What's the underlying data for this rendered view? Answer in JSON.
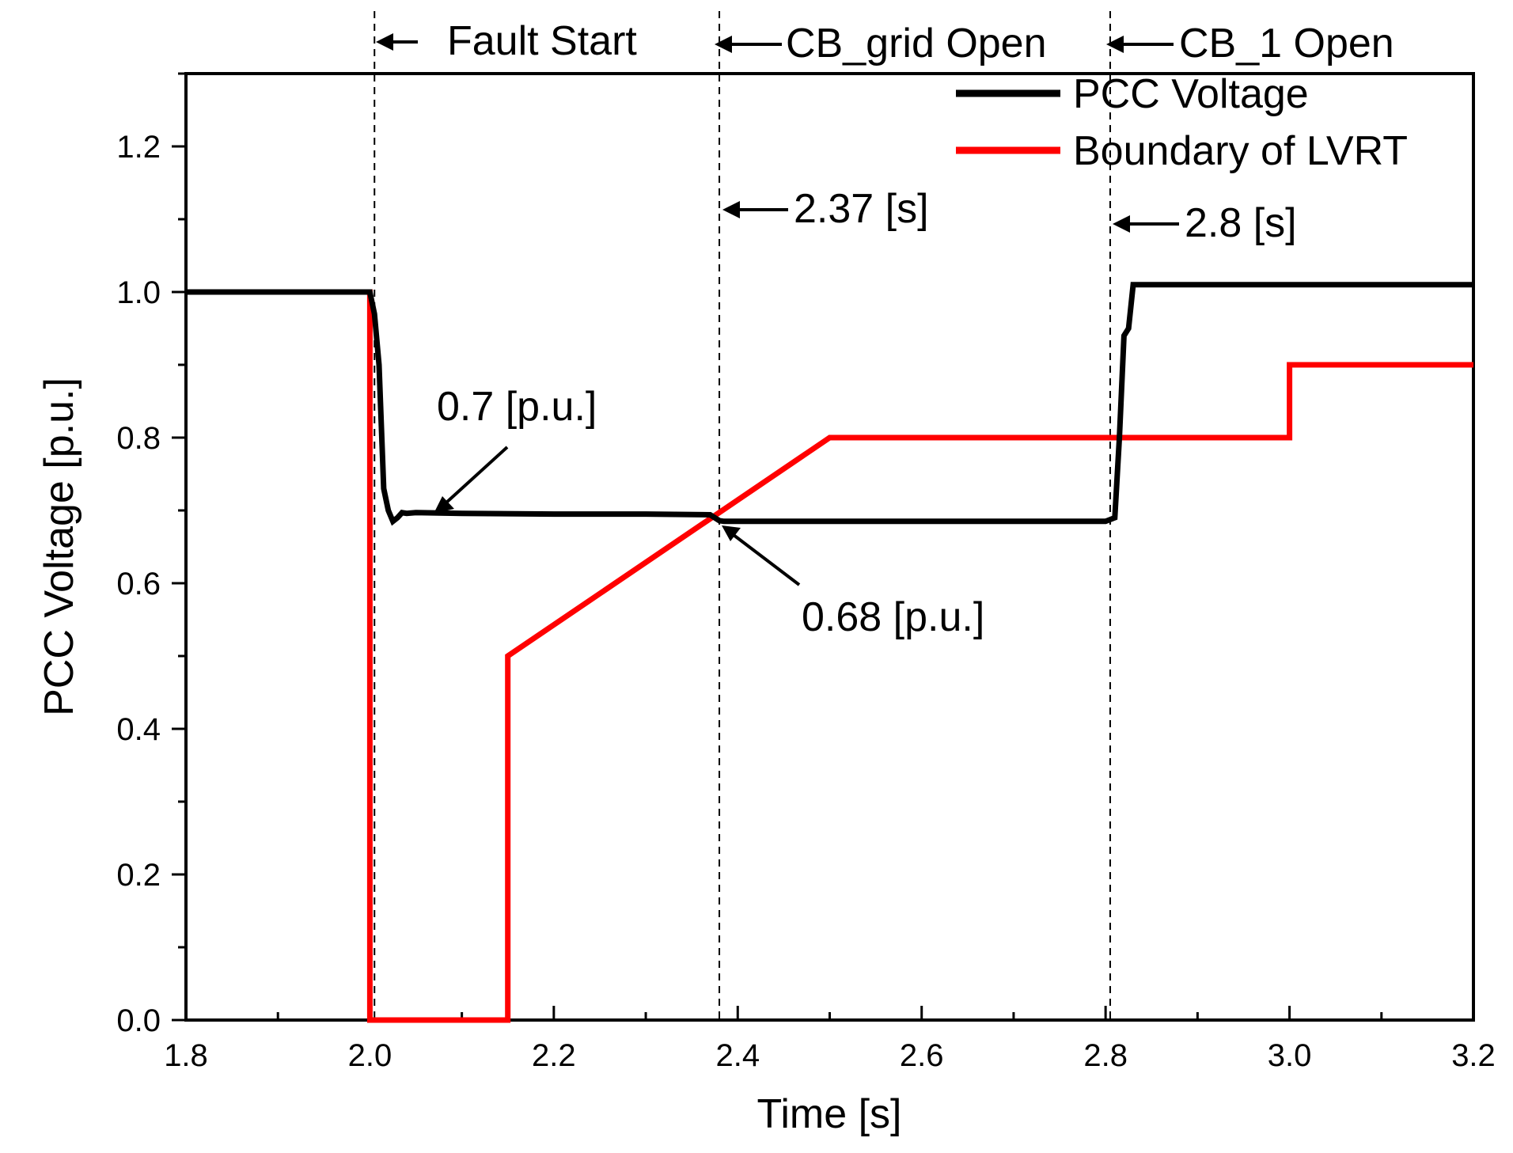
{
  "chart_data": {
    "type": "line",
    "xlabel": "Time [s]",
    "ylabel": "PCC Voltage [p.u.]",
    "xlim": [
      1.8,
      3.2
    ],
    "ylim": [
      0.0,
      1.3
    ],
    "x_ticks": [
      1.8,
      2.0,
      2.2,
      2.4,
      2.6,
      2.8,
      3.0,
      3.2
    ],
    "x_tick_labels": [
      "1.8",
      "2.0",
      "2.2",
      "2.4",
      "2.6",
      "2.8",
      "3.0",
      "3.2"
    ],
    "y_ticks": [
      0.0,
      0.2,
      0.4,
      0.6,
      0.8,
      1.0,
      1.2
    ],
    "y_tick_labels": [
      "0.0",
      "0.2",
      "0.4",
      "0.6",
      "0.8",
      "1.0",
      "1.2"
    ],
    "grid": false,
    "legend_position": "top-right",
    "series": [
      {
        "name": "PCC Voltage",
        "color": "#000000",
        "x": [
          1.8,
          2.0,
          2.005,
          2.01,
          2.015,
          2.02,
          2.025,
          2.03,
          2.035,
          2.04,
          2.05,
          2.1,
          2.2,
          2.3,
          2.37,
          2.38,
          2.385,
          2.5,
          2.6,
          2.7,
          2.8,
          2.81,
          2.815,
          2.82,
          2.825,
          2.83,
          2.9,
          3.0,
          3.1,
          3.2
        ],
        "y": [
          1.0,
          1.0,
          0.97,
          0.9,
          0.73,
          0.7,
          0.685,
          0.69,
          0.697,
          0.696,
          0.697,
          0.696,
          0.695,
          0.695,
          0.694,
          0.686,
          0.685,
          0.685,
          0.685,
          0.685,
          0.685,
          0.69,
          0.8,
          0.94,
          0.95,
          1.01,
          1.01,
          1.01,
          1.01,
          1.01
        ]
      },
      {
        "name": "Boundary of LVRT",
        "color": "#ff0000",
        "x": [
          1.8,
          2.0,
          2.0,
          2.15,
          2.15,
          2.5,
          3.0,
          3.0,
          3.2
        ],
        "y": [
          1.0,
          1.0,
          0.0,
          0.0,
          0.5,
          0.8,
          0.8,
          0.9,
          0.9
        ]
      }
    ],
    "event_lines": [
      {
        "x": 2.005,
        "label": "Fault Start"
      },
      {
        "x": 2.38,
        "label": "CB_grid Open"
      },
      {
        "x": 2.805,
        "label": "CB_1 Open"
      }
    ],
    "annotations": [
      {
        "text": "2.37 [s]",
        "target": [
          2.38,
          1.11
        ]
      },
      {
        "text": "2.8 [s]",
        "target": [
          2.805,
          1.09
        ]
      },
      {
        "text": "0.7 [p.u.]",
        "target": [
          2.07,
          0.697
        ]
      },
      {
        "text": "0.68 [p.u.]",
        "target": [
          2.385,
          0.686
        ]
      }
    ]
  }
}
